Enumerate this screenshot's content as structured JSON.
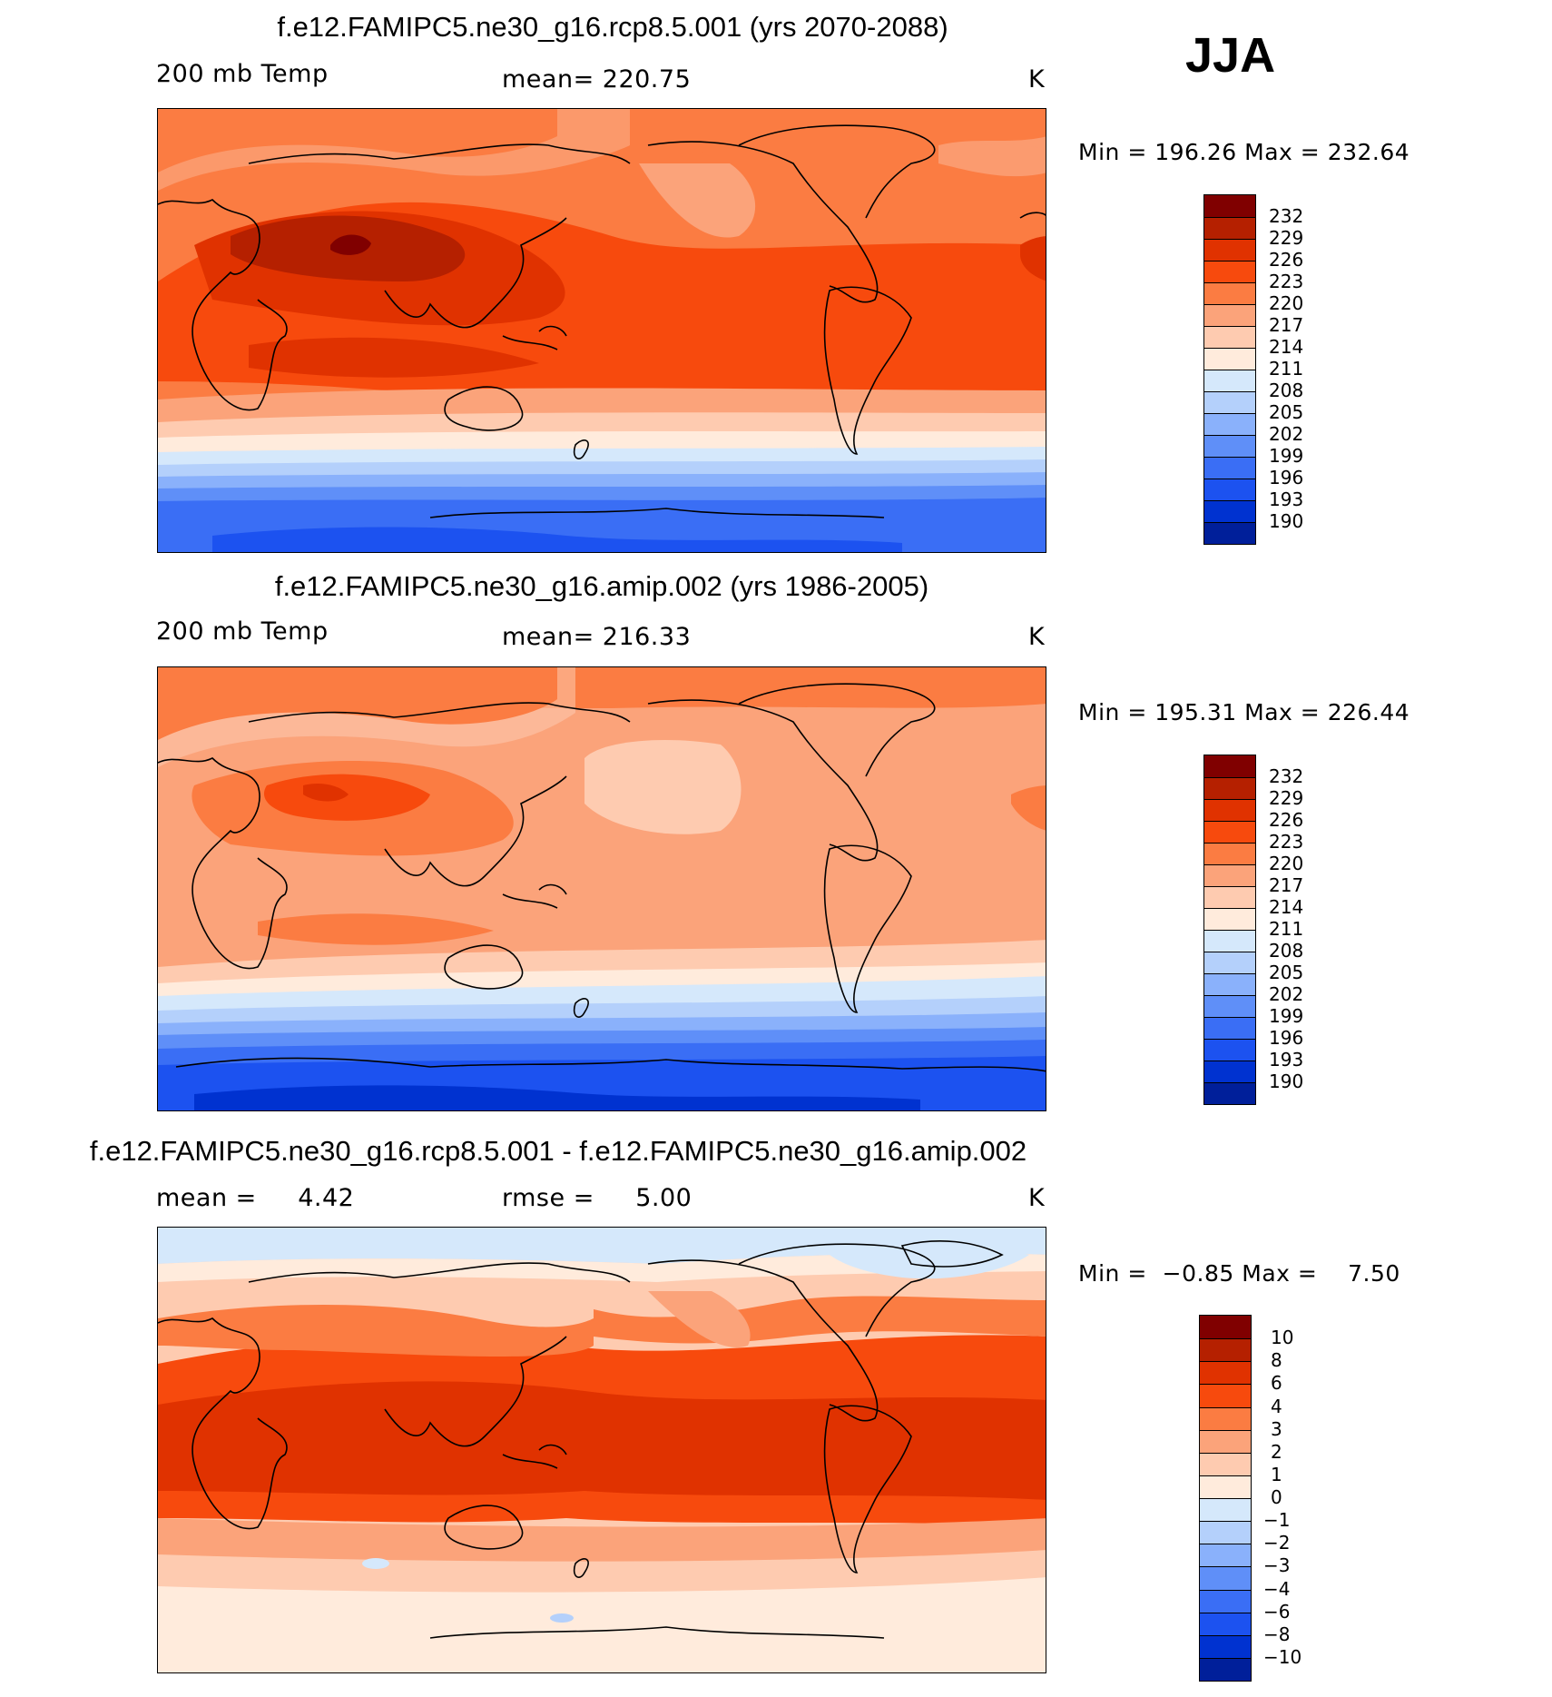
{
  "season": "JJA",
  "colors": {
    "warm": [
      "#800000",
      "#b52000",
      "#e03200",
      "#f74a0d",
      "#fb7c42",
      "#fba37a",
      "#fecbb0",
      "#ffebdc"
    ],
    "cool": [
      "#d5e8fb",
      "#b4d0fb",
      "#8ab1fb",
      "#5f8ff8",
      "#3a6ef5",
      "#1c52f0",
      "#0032d0",
      "#001f9a",
      "#00107a"
    ]
  },
  "panels": [
    {
      "title": "f.e12.FAMIPC5.ne30_g16.rcp8.5.001 (yrs 2070-2088)",
      "left_label": "200 mb Temp",
      "center_label": "mean=  220.75",
      "unit": "K",
      "min_label": "Min",
      "min_value": "196.26",
      "max_label": "Max",
      "max_value": "232.64",
      "colorbar_levels": [
        "232",
        "229",
        "226",
        "223",
        "220",
        "217",
        "214",
        "211",
        "208",
        "205",
        "202",
        "199",
        "196",
        "193",
        "190"
      ],
      "colorbar_colors": [
        "#800000",
        "#b52000",
        "#e03200",
        "#f74a0d",
        "#fb7c42",
        "#fba37a",
        "#fecbb0",
        "#ffebdc",
        "#d5e8fb",
        "#b4d0fb",
        "#8ab1fb",
        "#5f8ff8",
        "#3a6ef5",
        "#1c52f0",
        "#0032d0",
        "#001f9a"
      ]
    },
    {
      "title": "f.e12.FAMIPC5.ne30_g16.amip.002 (yrs 1986-2005)",
      "left_label": "200 mb Temp",
      "center_label": "mean=  216.33",
      "unit": "K",
      "min_label": "Min",
      "min_value": "195.31",
      "max_label": "Max",
      "max_value": "226.44",
      "colorbar_levels": [
        "232",
        "229",
        "226",
        "223",
        "220",
        "217",
        "214",
        "211",
        "208",
        "205",
        "202",
        "199",
        "196",
        "193",
        "190"
      ],
      "colorbar_colors": [
        "#800000",
        "#b52000",
        "#e03200",
        "#f74a0d",
        "#fb7c42",
        "#fba37a",
        "#fecbb0",
        "#ffebdc",
        "#d5e8fb",
        "#b4d0fb",
        "#8ab1fb",
        "#5f8ff8",
        "#3a6ef5",
        "#1c52f0",
        "#0032d0",
        "#001f9a"
      ]
    },
    {
      "title": "f.e12.FAMIPC5.ne30_g16.rcp8.5.001 - f.e12.FAMIPC5.ne30_g16.amip.002",
      "left_label": "mean =     4.42",
      "center_label": "rmse =     5.00",
      "unit": "K",
      "min_label": "Min",
      "min_value": "−0.85",
      "max_label": "Max",
      "max_value": "7.50",
      "colorbar_levels": [
        "10",
        "8",
        "6",
        "4",
        "3",
        "2",
        "1",
        "0",
        "−1",
        "−2",
        "−3",
        "−4",
        "−6",
        "−8",
        "−10"
      ],
      "colorbar_colors": [
        "#800000",
        "#b52000",
        "#e03200",
        "#f74a0d",
        "#fb7c42",
        "#fba37a",
        "#fecbb0",
        "#ffebdc",
        "#d5e8fb",
        "#b4d0fb",
        "#8ab1fb",
        "#5f8ff8",
        "#3a6ef5",
        "#1c52f0",
        "#0032d0",
        "#001f9a"
      ]
    }
  ]
}
